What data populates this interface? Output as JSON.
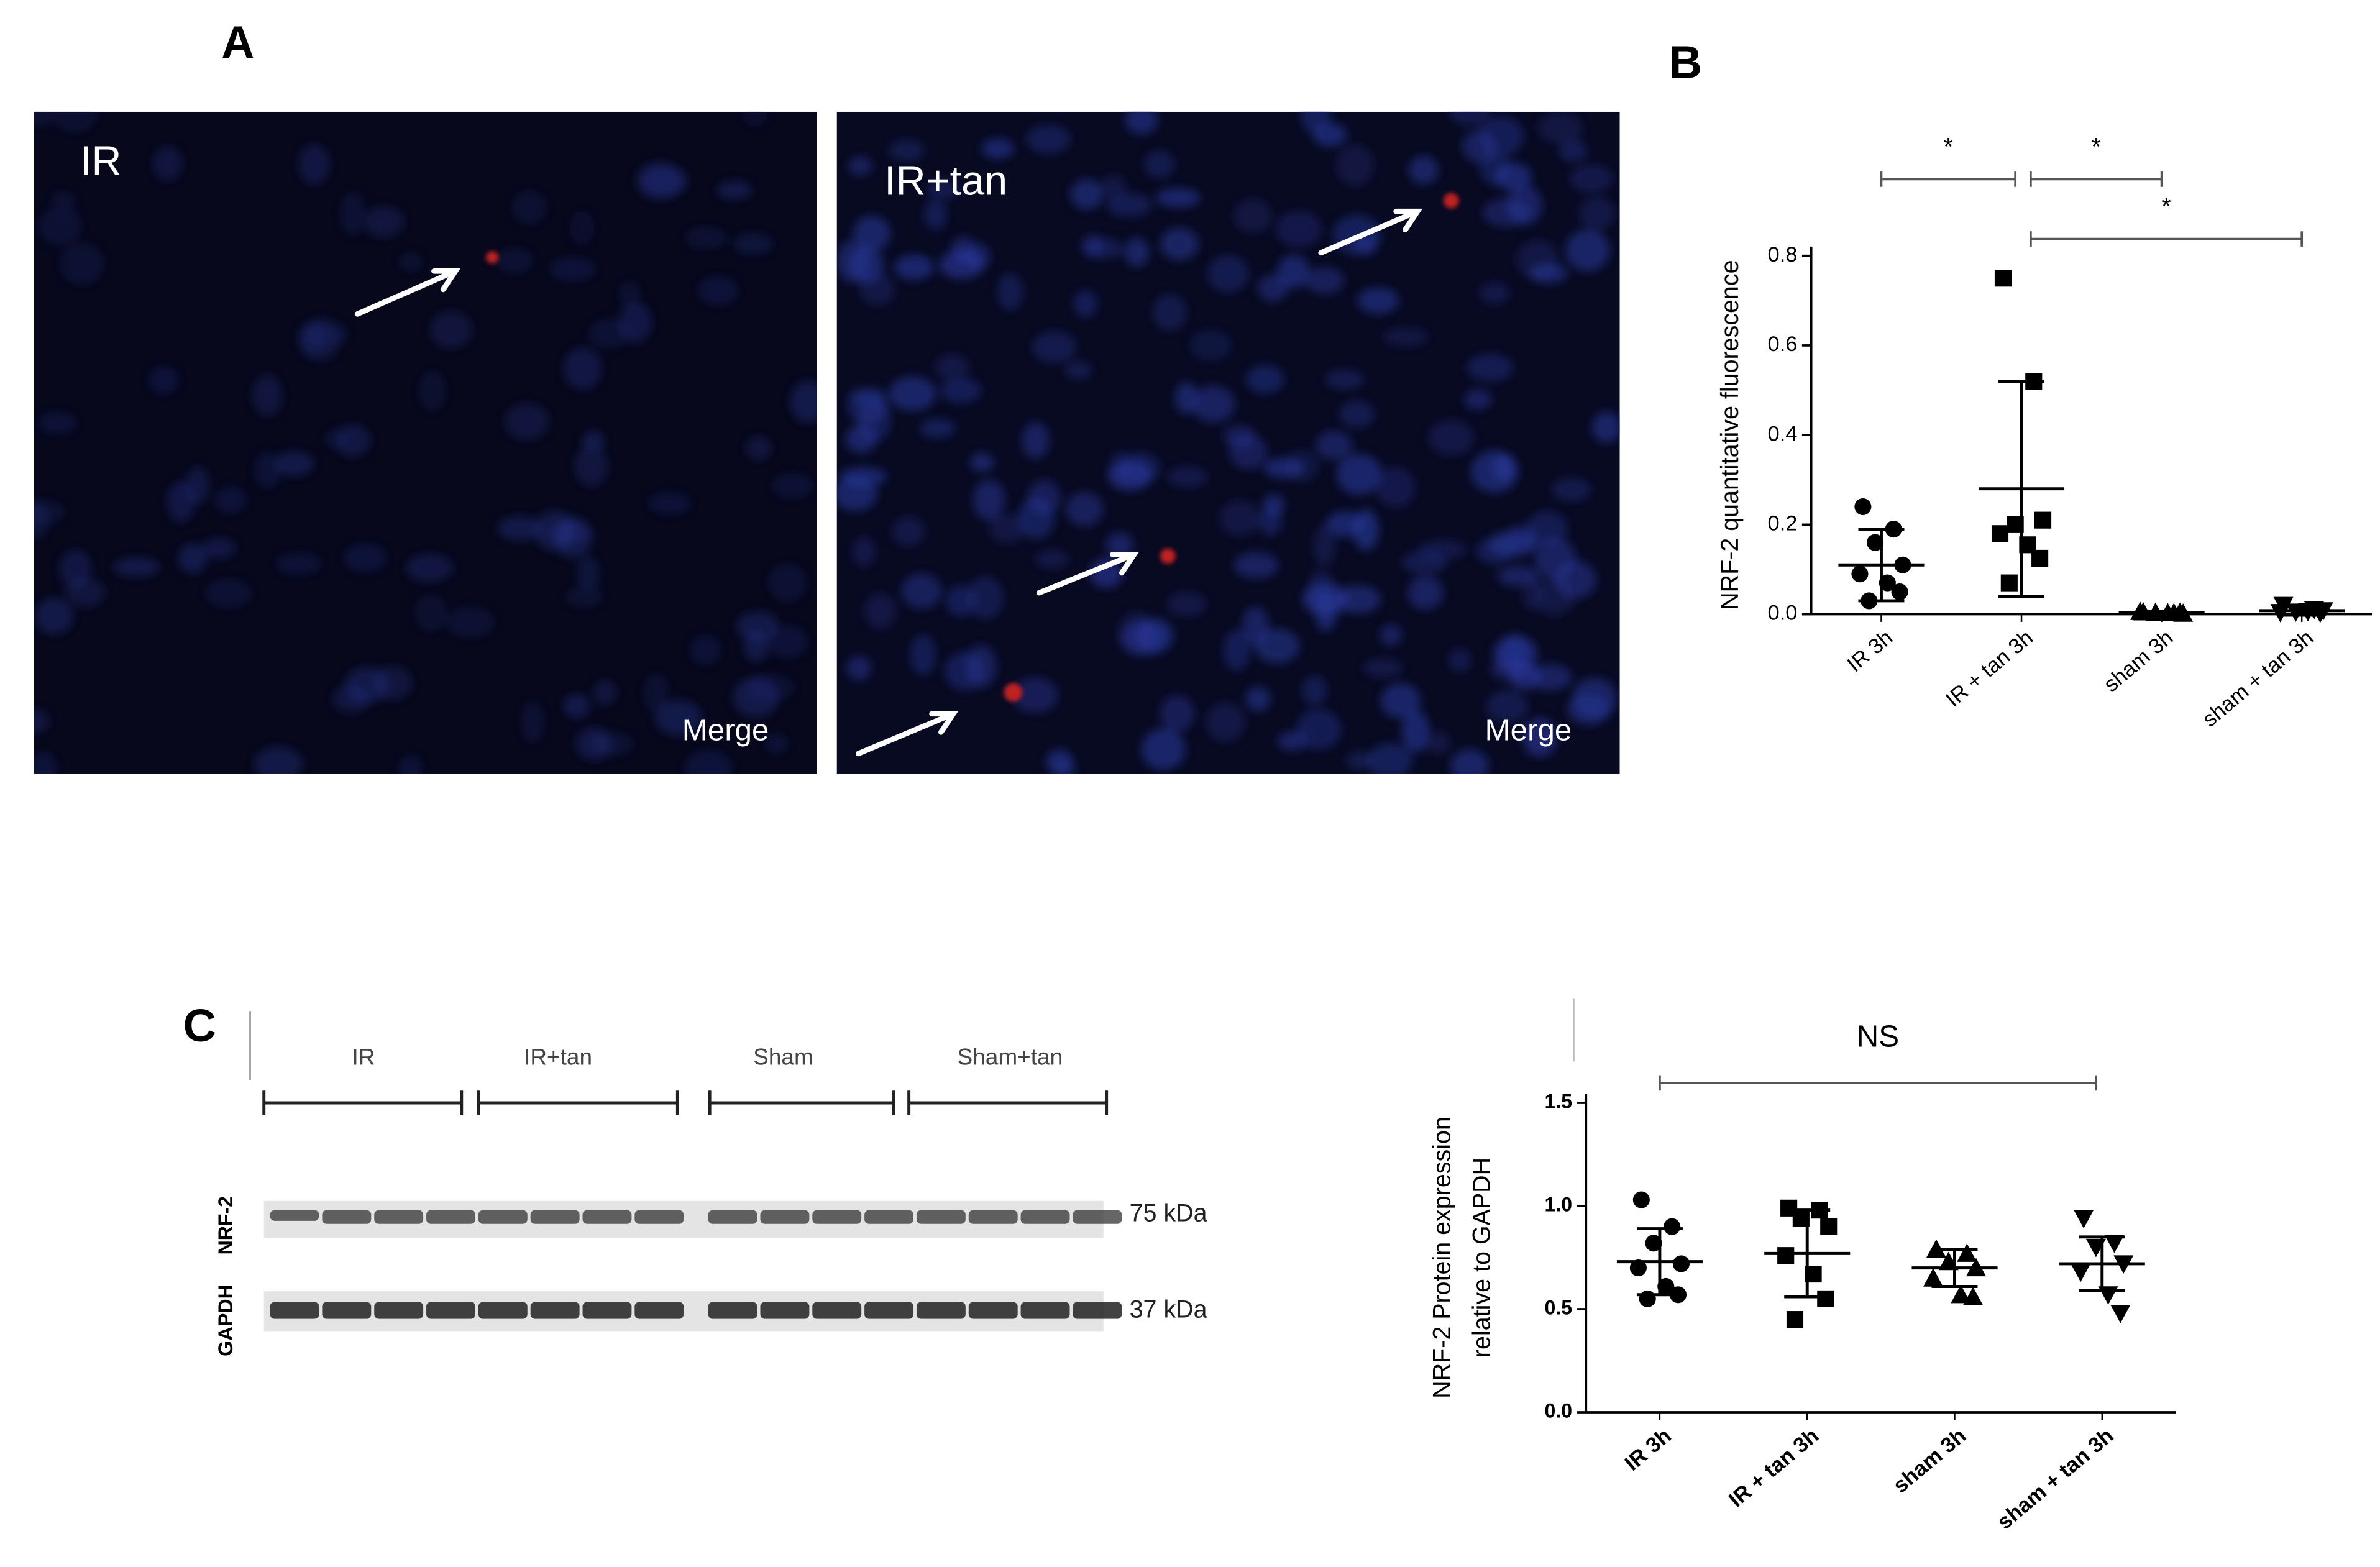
{
  "figure": {
    "panel_labels": [
      "A",
      "B",
      "C"
    ],
    "images": [
      {
        "label": "IR",
        "caption": "Merge"
      },
      {
        "label": "IR+tan",
        "caption": "Merge"
      }
    ],
    "blot": {
      "groups": [
        "IR",
        "IR+tan",
        "Sham",
        "Sham+tan"
      ],
      "rows": [
        {
          "name": "NRF-2",
          "size": "75 kDa"
        },
        {
          "name": "GAPDH",
          "size": "37 kDa"
        }
      ]
    }
  },
  "chart_data": [
    {
      "type": "scatter",
      "ylabel": "NRF-2 quantitative fluorescence",
      "categories": [
        "IR 3h",
        "IR + tan 3h",
        "sham 3h",
        "sham + tan 3h"
      ],
      "values": [
        [
          0.24,
          0.19,
          0.16,
          0.11,
          0.09,
          0.07,
          0.05,
          0.03
        ],
        [
          0.75,
          0.52,
          0.2,
          0.21,
          0.18,
          0.155,
          0.125,
          0.07
        ],
        [
          0.005,
          0.003,
          0.004,
          0.002,
          0.006,
          0.003,
          0.004
        ],
        [
          0.02,
          0.01,
          0.005,
          0.008,
          0.004,
          0.006,
          0.003
        ]
      ],
      "means": [
        0.11,
        0.28,
        0.003,
        0.008
      ],
      "sd": [
        0.08,
        0.24,
        0.004,
        0.01
      ],
      "markers": [
        "circle",
        "square",
        "triangle-up",
        "triangle-down"
      ],
      "color": "#000000",
      "ylim": [
        0,
        0.8
      ],
      "yticks": [
        {
          "value": 0,
          "label": "0.0"
        },
        0.2,
        0.4,
        0.6,
        0.8
      ],
      "annotations": [
        {
          "text": "*",
          "between": [
            "IR 3h",
            "IR + tan 3h"
          ]
        },
        {
          "text": "*",
          "between": [
            "IR + tan 3h",
            "sham 3h"
          ]
        },
        {
          "text": "*",
          "between": [
            "IR + tan 3h",
            "sham + tan 3h"
          ]
        }
      ]
    },
    {
      "type": "scatter",
      "ylabel": [
        "NRF-2 Protein expression",
        "relative to GAPDH"
      ],
      "categories": [
        "IR 3h",
        "IR + tan 3h",
        "sham 3h",
        "sham + tan 3h"
      ],
      "values": [
        [
          1.03,
          0.9,
          0.82,
          0.72,
          0.7,
          0.61,
          0.57,
          0.55
        ],
        [
          0.99,
          0.98,
          0.94,
          0.9,
          0.76,
          0.67,
          0.55,
          0.45
        ],
        [
          0.79,
          0.77,
          0.73,
          0.7,
          0.65,
          0.57,
          0.56
        ],
        [
          0.94,
          0.82,
          0.8,
          0.72,
          0.68,
          0.57,
          0.48
        ]
      ],
      "means": [
        0.73,
        0.77,
        0.7,
        0.72
      ],
      "sd": [
        0.16,
        0.21,
        0.09,
        0.13
      ],
      "markers": [
        "circle",
        "square",
        "triangle-up",
        "triangle-down"
      ],
      "color": "#000000",
      "ylim": [
        0,
        1.5
      ],
      "yticks": [
        {
          "value": 0,
          "label": "0.0"
        },
        0.5,
        {
          "value": 1,
          "label": "1.0"
        },
        1.5
      ],
      "annotations": [
        {
          "text": "NS",
          "between": [
            "IR 3h",
            "sham + tan 3h"
          ]
        }
      ]
    }
  ]
}
